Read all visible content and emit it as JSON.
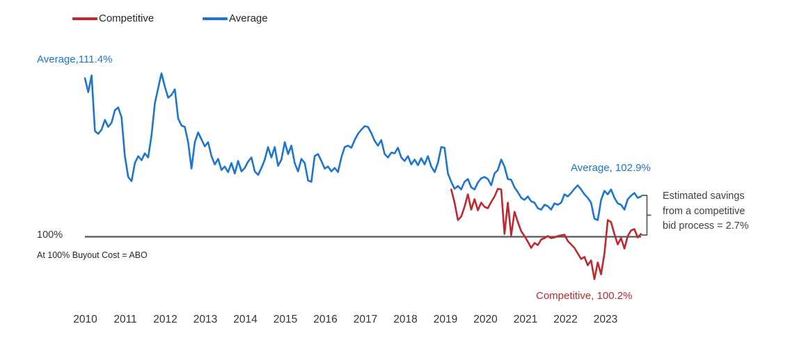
{
  "legend": [
    {
      "label": "Competitive",
      "color": "#C0272E"
    },
    {
      "label": "Average",
      "color": "#1B75D1"
    }
  ],
  "annotations": {
    "avg_start": "Average,111.4%",
    "avg_end": "Average, 102.9%",
    "comp_end": "Competitive, 100.2%",
    "baseline_label": "100%",
    "baseline_note": "At 100% Buyout Cost  = ABO",
    "savings_note_lines": [
      "Estimated savings",
      "from a competitive",
      "bid process = 2.7%"
    ]
  },
  "chart_data": {
    "type": "line",
    "title": "",
    "xlabel": "",
    "ylabel": "",
    "x_labels": [
      "2010",
      "2011",
      "2012",
      "2013",
      "2014",
      "2015",
      "2016",
      "2017",
      "2018",
      "2019",
      "2020",
      "2021",
      "2022",
      "2023"
    ],
    "points_per_year": 12,
    "ylim": [
      96,
      112.5
    ],
    "baseline_value": 100,
    "grid": false,
    "legend_position": "top-left",
    "colors": {
      "average": "#1B75D1",
      "competitive": "#C0272E",
      "baseline": "#55565A",
      "bracket": "#565659"
    },
    "key_values": {
      "average_start": 111.4,
      "average_end": 102.9,
      "competitive_end": 100.2,
      "estimated_savings_pct": 2.7
    },
    "series": [
      {
        "name": "Average",
        "color": "#1B75D1",
        "start_index": 0,
        "values": [
          111.4,
          110.4,
          111.6,
          107.6,
          107.4,
          107.7,
          108.4,
          107.9,
          108.2,
          109.1,
          109.3,
          108.6,
          105.8,
          104.3,
          104.0,
          105.3,
          105.8,
          105.5,
          106.0,
          105.7,
          107.3,
          109.6,
          110.7,
          111.75,
          110.8,
          110.0,
          110.2,
          110.6,
          108.5,
          108.0,
          107.9,
          106.8,
          104.9,
          106.8,
          107.5,
          107.0,
          106.5,
          106.8,
          105.8,
          105.2,
          105.6,
          104.8,
          105.05,
          104.65,
          105.3,
          104.55,
          105.45,
          104.7,
          104.95,
          105.4,
          105.7,
          104.7,
          104.45,
          104.95,
          105.55,
          106.45,
          105.7,
          106.45,
          105.1,
          105.55,
          106.8,
          105.95,
          106.55,
          105.3,
          104.7,
          105.6,
          105.3,
          104.05,
          103.95,
          105.8,
          105.95,
          105.45,
          104.9,
          105.05,
          104.7,
          104.95,
          104.65,
          105.7,
          106.45,
          106.55,
          106.4,
          106.95,
          107.4,
          107.7,
          107.95,
          107.9,
          107.45,
          106.9,
          106.55,
          106.95,
          105.95,
          105.7,
          106.05,
          106.0,
          106.4,
          105.7,
          105.45,
          105.8,
          105.2,
          105.55,
          105.15,
          105.65,
          105.2,
          105.8,
          105.05,
          104.65,
          105.3,
          106.45,
          106.4,
          104.55,
          103.95,
          103.45,
          103.65,
          103.4,
          103.95,
          104.15,
          103.55,
          103.4,
          103.9,
          104.2,
          104.3,
          104.15,
          103.7,
          104.55,
          104.8,
          105.55,
          105.05,
          104.15,
          104.1,
          103.55,
          103.2,
          102.8,
          102.65,
          102.9,
          102.55,
          102.45,
          102.05,
          101.95,
          102.3,
          102.2,
          101.95,
          102.4,
          102.3,
          102.45,
          103.05,
          102.9,
          103.15,
          103.45,
          103.7,
          103.4,
          103.05,
          102.8,
          102.45,
          101.3,
          101.2,
          102.65,
          103.3,
          103.05,
          103.4,
          102.8,
          102.4,
          102.3,
          101.95,
          102.7,
          102.95,
          103.15,
          102.8,
          102.9
        ]
      },
      {
        "name": "Competitive",
        "color": "#C0272E",
        "start_index": 110,
        "values": [
          103.4,
          102.45,
          101.2,
          101.45,
          102.15,
          103.05,
          101.95,
          102.7,
          101.9,
          102.45,
          102.15,
          102.05,
          102.5,
          102.9,
          103.45,
          103.4,
          100.2,
          102.45,
          100.1,
          101.8,
          101.05,
          100.4,
          100.05,
          99.65,
          99.2,
          99.55,
          99.4,
          99.8,
          99.9,
          100.05,
          99.9,
          99.95,
          100.05,
          100.1,
          100.15,
          99.7,
          99.45,
          99.2,
          98.8,
          98.4,
          98.55,
          97.95,
          98.3,
          96.95,
          98.15,
          97.3,
          98.8,
          101.2,
          101.05,
          100.2,
          99.45,
          99.9,
          99.15,
          100.05,
          100.45,
          100.55,
          99.95,
          100.2
        ]
      }
    ]
  }
}
